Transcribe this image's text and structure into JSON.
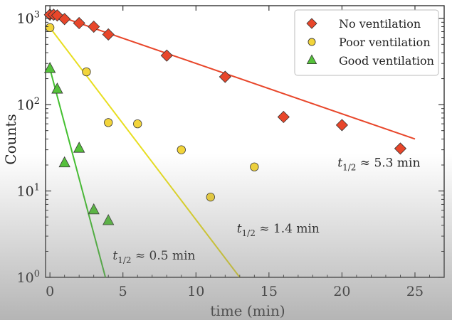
{
  "chart_data": {
    "type": "scatter",
    "title": "",
    "xlabel": "time (min)",
    "ylabel": "Counts",
    "xlim": [
      -0.3,
      27
    ],
    "ylim": [
      1,
      1400
    ],
    "y_scale": "log",
    "x_ticks": [
      0,
      5,
      10,
      15,
      20,
      25
    ],
    "x_tick_labels": [
      "0",
      "5",
      "10",
      "15",
      "20",
      "25"
    ],
    "y_ticks": [
      1,
      10,
      100,
      1000
    ],
    "y_tick_labels": [
      {
        "base": "10",
        "exp": "0"
      },
      {
        "base": "10",
        "exp": "1"
      },
      {
        "base": "10",
        "exp": "2"
      },
      {
        "base": "10",
        "exp": "3"
      }
    ],
    "grid": false,
    "legend_position": "top-right",
    "series": [
      {
        "name": "No ventilation",
        "marker": "diamond",
        "color": "#e8462a",
        "line_color": "#e8462a",
        "x": [
          0,
          0.25,
          0.5,
          1,
          2,
          3,
          4,
          8,
          12,
          16,
          20,
          24
        ],
        "y": [
          1100,
          1100,
          1080,
          980,
          880,
          800,
          650,
          370,
          210,
          72,
          58,
          31
        ],
        "fit": {
          "x": [
            0,
            25
          ],
          "y": [
            1150,
            40
          ]
        }
      },
      {
        "name": "Poor ventilation",
        "marker": "circle",
        "color": "#f2d43a",
        "line_color": "#e8de20",
        "x": [
          0,
          2.5,
          4,
          6,
          9,
          11,
          14
        ],
        "y": [
          780,
          240,
          62,
          60,
          30,
          8.5,
          19
        ],
        "fit": {
          "x": [
            0,
            13
          ],
          "y": [
            780,
            1
          ]
        }
      },
      {
        "name": "Good ventilation",
        "marker": "triangle",
        "color": "#55c23a",
        "line_color": "#44c030",
        "x": [
          0,
          0.5,
          1,
          2,
          3,
          4
        ],
        "y": [
          260,
          150,
          21,
          31,
          6,
          4.5
        ],
        "fit": {
          "x": [
            0,
            3.8
          ],
          "y": [
            260,
            1
          ]
        }
      }
    ],
    "annotations": [
      {
        "text": "t",
        "sub": "1/2",
        "rest": " ≈ 5.3 min",
        "x": 19.7,
        "y": 19
      },
      {
        "text": "t",
        "sub": "1/2",
        "rest": " ≈ 1.4 min",
        "x": 12.8,
        "y": 3.3
      },
      {
        "text": "t",
        "sub": "1/2",
        "rest": " ≈ 0.5 min",
        "x": 4.3,
        "y": 1.6
      }
    ]
  }
}
